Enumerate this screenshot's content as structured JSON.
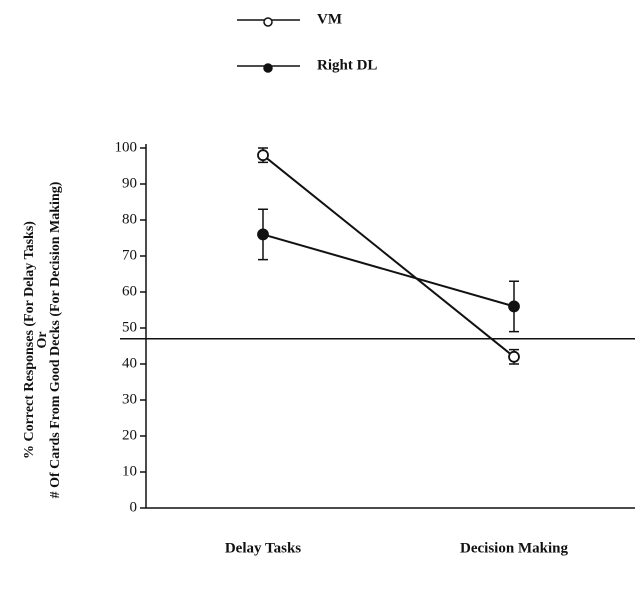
{
  "chart_data": {
    "type": "line",
    "categories": [
      "Delay Tasks",
      "Decision Making"
    ],
    "series": [
      {
        "name": "VM",
        "color": "#111111",
        "marker": "open",
        "values": [
          98,
          42
        ],
        "errors": [
          2,
          2
        ]
      },
      {
        "name": "Right DL",
        "color": "#111111",
        "marker": "filled",
        "values": [
          76,
          56
        ],
        "errors": [
          7,
          7
        ]
      }
    ],
    "ylabel": [
      "% Correct Responses (For Delay Tasks)",
      "Or",
      "# Of Cards From Good Decks (For Decision Making)"
    ],
    "ylim": [
      0,
      100
    ],
    "yticks": [
      0,
      10,
      20,
      30,
      40,
      50,
      60,
      70,
      80,
      90,
      100
    ],
    "reference_line": 47
  }
}
